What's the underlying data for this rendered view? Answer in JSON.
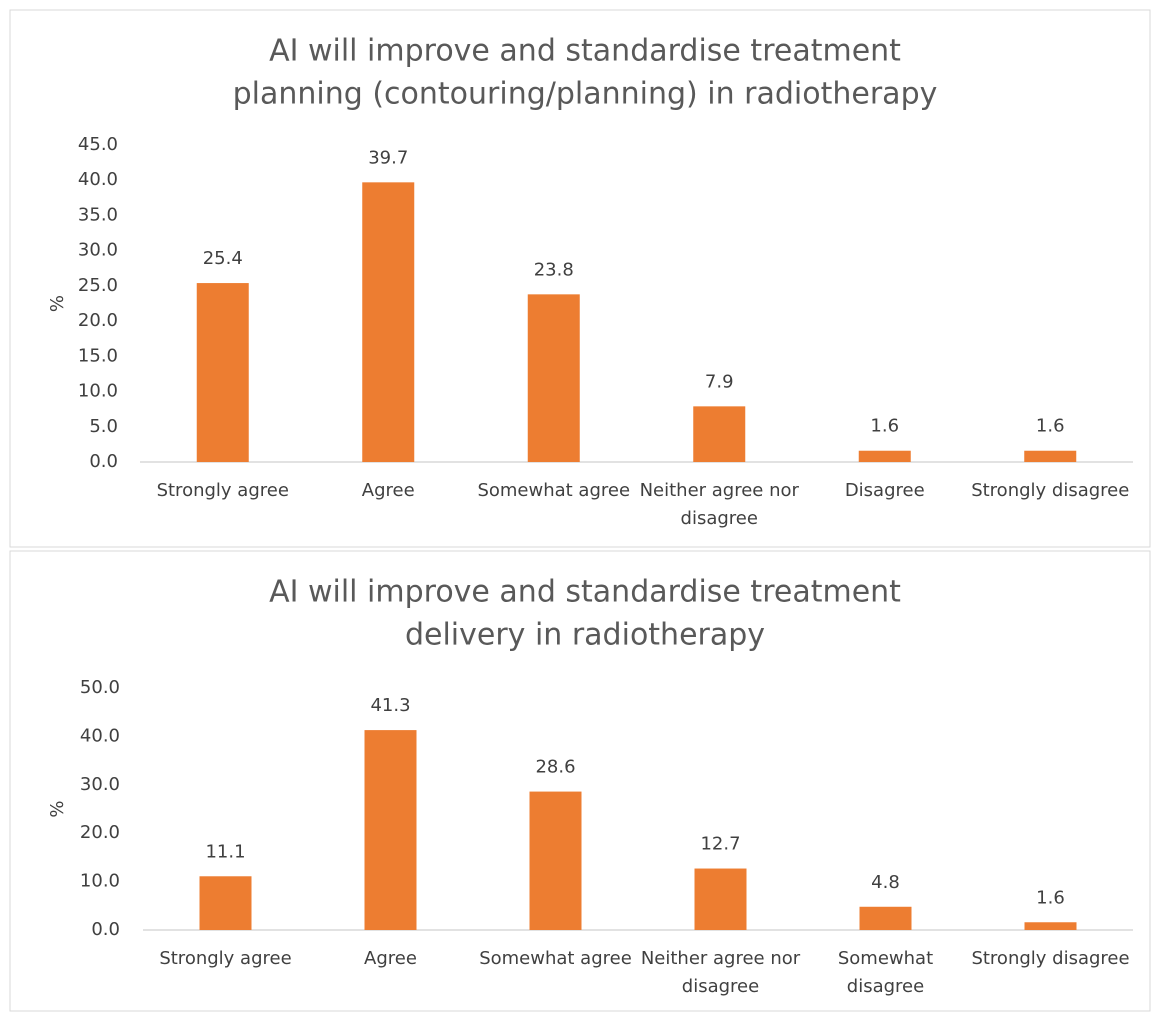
{
  "chart_data": [
    {
      "type": "bar",
      "title": "AI will improve and standardise treatment planning (contouring/planning) in radiotherapy",
      "y_label": "%",
      "categories": [
        "Strongly agree",
        "Agree",
        "Somewhat agree",
        "Neither agree nor disagree",
        "Disagree",
        "Strongly disagree"
      ],
      "values": [
        25.4,
        39.7,
        23.8,
        7.9,
        1.6,
        1.6
      ],
      "color": "#ed7d31",
      "ylim": [
        0,
        45
      ],
      "yticks": [
        {
          "value": 0,
          "label": "0.0"
        },
        {
          "value": 5,
          "label": "5.0"
        },
        {
          "value": 10,
          "label": "10.0"
        },
        {
          "value": 15,
          "label": "15.0"
        },
        {
          "value": 20,
          "label": "20.0"
        },
        {
          "value": 25,
          "label": "25.0"
        },
        {
          "value": 30,
          "label": "30.0"
        },
        {
          "value": 35,
          "label": "35.0"
        },
        {
          "value": 40,
          "label": "40.0"
        },
        {
          "value": 45,
          "label": "45.0"
        }
      ],
      "grid": false
    },
    {
      "type": "bar",
      "title": "AI will improve and standardise treatment delivery in radiotherapy",
      "y_label": "%",
      "categories": [
        "Strongly agree",
        "Agree",
        "Somewhat agree",
        "Neither agree nor disagree",
        "Somewhat disagree",
        "Strongly disagree"
      ],
      "values": [
        11.1,
        41.3,
        28.6,
        12.7,
        4.8,
        1.6
      ],
      "color": "#ed7d31",
      "ylim": [
        0,
        50
      ],
      "yticks": [
        {
          "value": 0,
          "label": "0.0"
        },
        {
          "value": 10,
          "label": "10.0"
        },
        {
          "value": 20,
          "label": "20.0"
        },
        {
          "value": 30,
          "label": "30.0"
        },
        {
          "value": 40,
          "label": "40.0"
        },
        {
          "value": 50,
          "label": "50.0"
        }
      ],
      "grid": false
    }
  ]
}
